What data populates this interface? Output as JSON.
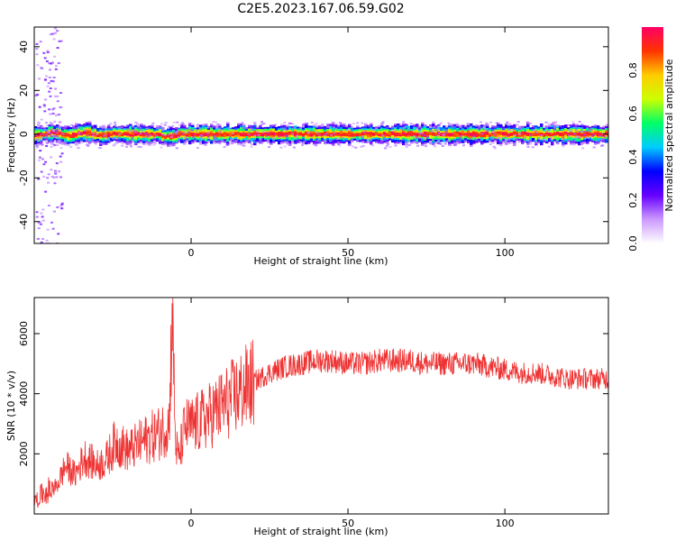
{
  "title": "C2E5.2023.167.06.59.G02",
  "chart_data": [
    {
      "type": "heatmap",
      "xlabel": "Height of straight line (km)",
      "ylabel": "Frequency (Hz)",
      "xlim": [
        -50,
        133
      ],
      "ylim": [
        -50,
        49
      ],
      "xticks": [
        0,
        50,
        100
      ],
      "yticks": [
        -40,
        -20,
        0,
        20,
        40
      ],
      "ridge_frequency_hz": 0,
      "colorbar": {
        "label": "Normalized spectral amplitude",
        "range": [
          0,
          1
        ],
        "ticks": [
          "0.0",
          "0.2",
          "0.4",
          "0.6",
          "0.8"
        ],
        "colormap": [
          "#ffffff",
          "#cc99ff",
          "#6600ff",
          "#0000ff",
          "#00ccff",
          "#00ff66",
          "#ccff00",
          "#ffcc00",
          "#ff3300",
          "#ff0066"
        ]
      }
    },
    {
      "type": "line",
      "xlabel": "Height of straight line (km)",
      "ylabel": "SNR (10 * v/v)",
      "xlim": [
        -50,
        133
      ],
      "ylim": [
        0,
        7200
      ],
      "xticks": [
        0,
        50,
        100
      ],
      "yticks": [
        2000,
        4000,
        6000
      ],
      "color": "#ee3333",
      "x": [
        -50,
        -47,
        -43,
        -40,
        -37,
        -34,
        -30,
        -27,
        -24,
        -20,
        -17,
        -14,
        -10,
        -7,
        -6,
        -5,
        -4,
        -2,
        0,
        5,
        10,
        15,
        20,
        25,
        30,
        35,
        40,
        45,
        50,
        55,
        60,
        65,
        70,
        75,
        80,
        85,
        90,
        95,
        100,
        105,
        110,
        115,
        120,
        125,
        130,
        133
      ],
      "y": [
        400,
        700,
        900,
        1600,
        1300,
        1900,
        1600,
        1800,
        2400,
        2100,
        2300,
        2500,
        2700,
        3000,
        7000,
        2400,
        1800,
        2900,
        2900,
        3200,
        3600,
        4000,
        4400,
        4700,
        4900,
        5000,
        5100,
        5100,
        5000,
        5000,
        5100,
        5100,
        5100,
        5000,
        5000,
        5000,
        5000,
        4900,
        4800,
        4700,
        4700,
        4600,
        4500,
        4500,
        4500,
        4500
      ]
    }
  ]
}
